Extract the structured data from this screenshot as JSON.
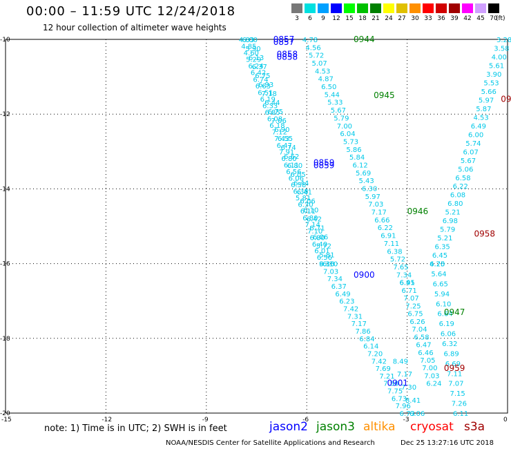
{
  "header": {
    "title": "00:00 – 11:59 UTC 12/24/2018",
    "subtitle": "12 hour collection of altimeter wave heights"
  },
  "color_scale": {
    "unit": "(ft)",
    "levels": [
      {
        "label": "3",
        "color": "#787878"
      },
      {
        "label": "6",
        "color": "#00e0e0"
      },
      {
        "label": "9",
        "color": "#00a0ff"
      },
      {
        "label": "12",
        "color": "#0000ff"
      },
      {
        "label": "15",
        "color": "#00ff00"
      },
      {
        "label": "18",
        "color": "#00c000"
      },
      {
        "label": "21",
        "color": "#008000"
      },
      {
        "label": "24",
        "color": "#ffff00"
      },
      {
        "label": "27",
        "color": "#e0c000"
      },
      {
        "label": "30",
        "color": "#ff9000"
      },
      {
        "label": "33",
        "color": "#ff0000"
      },
      {
        "label": "36",
        "color": "#d00000"
      },
      {
        "label": "39",
        "color": "#a00000"
      },
      {
        "label": "42",
        "color": "#ff00ff"
      },
      {
        "label": "45",
        "color": "#d0a0ff"
      },
      {
        "label": "70",
        "color": "#000000"
      }
    ]
  },
  "footer": {
    "note": "note: 1) Time is in UTC; 2) SWH is in feet",
    "sats": [
      {
        "name": "jason2",
        "color": "#0000ff"
      },
      {
        "name": "jason3",
        "color": "#008000"
      },
      {
        "name": "altika",
        "color": "#ff9000"
      },
      {
        "name": "cryosat",
        "color": "#ff0000"
      },
      {
        "name": "s3a",
        "color": "#a00000"
      }
    ],
    "credit": "NOAA/NESDIS Center for Satellite Applications and Research",
    "timestamp": "Dec 25 13:27:16 UTC 2018"
  },
  "chart_data": {
    "type": "scatter",
    "title": "00:00 – 11:59 UTC 12/24/2018",
    "xlabel": "",
    "ylabel": "",
    "xlim": [
      -15,
      0
    ],
    "ylim": [
      -20,
      -10
    ],
    "x_ticks": [
      "-15",
      "-12",
      "-9",
      "-6",
      "-3",
      "0"
    ],
    "y_ticks": [
      "-10",
      "-12",
      "-14",
      "-16",
      "-18",
      "-20"
    ],
    "grid": true,
    "point_color": "#00c8e8",
    "tracks": [
      {
        "start": [
          -7.8,
          -10.0
        ],
        "end": [
          -5.4,
          -16.0
        ],
        "values": [
          "4.83",
          "4.85",
          "4.60",
          "5.29",
          "6.24",
          "6.42",
          "6.74",
          "6.63",
          "6.51",
          "6.19",
          "6.33",
          "6.85",
          "6.08",
          "6.18",
          "7.12",
          "7.43",
          "6.47",
          "7.91",
          "6.80",
          "6.11",
          "6.56",
          "6.06",
          "6.58",
          "6.38",
          "5.81",
          "6.30",
          "6.11",
          "6.80",
          "7.14",
          "7.10",
          "6.80",
          "6.40",
          "6.01",
          "6.56",
          "6.30"
        ]
      },
      {
        "start": [
          -7.7,
          -10.0
        ],
        "end": [
          -5.3,
          -16.0
        ],
        "values": [
          "6.00",
          "5.90",
          "6.13",
          "6.37",
          "6.75",
          "6.93",
          "7.18",
          "6.44",
          "6.75",
          "7.06",
          "6.90",
          "6.55",
          "6.74",
          "6.62",
          "6.80",
          "6.05",
          "6.44",
          "6.41",
          "6.06",
          "6.10",
          "6.42",
          "6.71",
          "6.06",
          "5.72",
          "5.81",
          "6.10"
        ]
      },
      {
        "start": [
          -5.4,
          -16.0
        ],
        "end": [
          -3.0,
          -20.0
        ],
        "values": [
          "9.16",
          "7.03",
          "7.34",
          "6.37",
          "6.49",
          "6.23",
          "7.42",
          "7.31",
          "7.17",
          "7.86",
          "6.84",
          "6.14",
          "7.20",
          "7.42",
          "7.69",
          "7.21",
          "7.50",
          "7.75",
          "6.73",
          "7.96",
          "6.73"
        ]
      },
      {
        "start": [
          -5.9,
          -10.0
        ],
        "end": [
          -3.0,
          -16.5
        ],
        "values": [
          "4.78",
          "4.56",
          "5.72",
          "5.07",
          "4.53",
          "4.87",
          "6.50",
          "5.44",
          "5.33",
          "5.67",
          "5.79",
          "7.00",
          "6.04",
          "5.73",
          "5.86",
          "5.84",
          "6.12",
          "5.69",
          "5.43",
          "6.30",
          "5.97",
          "7.03",
          "7.17",
          "6.66",
          "6.22",
          "6.91",
          "7.11",
          "6.38",
          "5.72",
          "7.65",
          "7.34",
          "6.45"
        ]
      },
      {
        "start": [
          -3.0,
          -16.5
        ],
        "end": [
          -2.2,
          -19.2
        ],
        "values": [
          "6.91",
          "6.71",
          "7.07",
          "7.25",
          "6.75",
          "6.26",
          "7.04",
          "6.58",
          "6.47",
          "6.46",
          "7.05",
          "7.00",
          "7.03",
          "6.24"
        ]
      },
      {
        "start": [
          -0.1,
          -10.0
        ],
        "end": [
          -2.1,
          -16.0
        ],
        "values": [
          "3.28",
          "3.58",
          "4.00",
          "5.61",
          "3.90",
          "5.53",
          "5.66",
          "5.97",
          "5.87",
          "4.53",
          "6.49",
          "6.00",
          "5.74",
          "6.07",
          "5.67",
          "5.06",
          "6.58",
          "6.22",
          "6.08",
          "6.80",
          "5.21",
          "6.98",
          "5.79",
          "5.21",
          "6.35",
          "6.45",
          "4.75"
        ]
      },
      {
        "start": [
          -2.1,
          -16.0
        ],
        "end": [
          -1.4,
          -20.0
        ],
        "values": [
          "6.20",
          "5.64",
          "6.65",
          "5.94",
          "6.10",
          "6.64",
          "6.19",
          "6.06",
          "6.32",
          "6.89",
          "6.69",
          "7.11",
          "7.07",
          "7.15",
          "7.26",
          "6.11"
        ]
      },
      {
        "start": [
          -3.2,
          -18.6
        ],
        "end": [
          -2.7,
          -20.0
        ],
        "values": [
          "8.49",
          "7.17",
          "7.30",
          "8.41",
          "6.06"
        ]
      }
    ],
    "time_labels": [
      {
        "text": "0857",
        "x": -7.0,
        "y": -10.0,
        "color": "#0000ff"
      },
      {
        "text": "0857",
        "x": -7.0,
        "y": -10.07,
        "color": "#0000ff"
      },
      {
        "text": "0858",
        "x": -6.9,
        "y": -10.4,
        "color": "#0000ff"
      },
      {
        "text": "0858",
        "x": -6.9,
        "y": -10.47,
        "color": "#0000ff"
      },
      {
        "text": "0859",
        "x": -5.8,
        "y": -13.3,
        "color": "#0000ff"
      },
      {
        "text": "0859",
        "x": -5.8,
        "y": -13.37,
        "color": "#0000ff"
      },
      {
        "text": "0900",
        "x": -4.6,
        "y": -16.3,
        "color": "#0000ff"
      },
      {
        "text": "0901",
        "x": -3.6,
        "y": -19.2,
        "color": "#0000ff"
      },
      {
        "text": "0944",
        "x": -4.6,
        "y": -10.0,
        "color": "#008000"
      },
      {
        "text": "0945",
        "x": -4.0,
        "y": -11.5,
        "color": "#008000"
      },
      {
        "text": "0946",
        "x": -3.0,
        "y": -14.6,
        "color": "#008000"
      },
      {
        "text": "0947",
        "x": -1.9,
        "y": -17.3,
        "color": "#008000"
      },
      {
        "text": "09",
        "x": -0.2,
        "y": -11.6,
        "color": "#a00000"
      },
      {
        "text": "0958",
        "x": -1.0,
        "y": -15.2,
        "color": "#a00000"
      },
      {
        "text": "0959",
        "x": -1.9,
        "y": -18.8,
        "color": "#a00000"
      }
    ]
  }
}
